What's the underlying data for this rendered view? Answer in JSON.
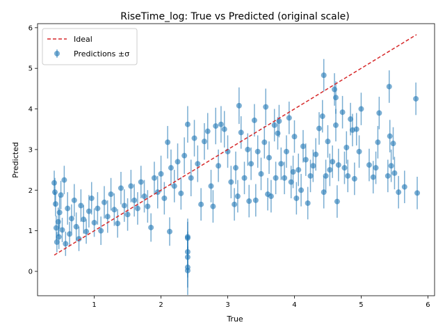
{
  "chart_data": {
    "type": "scatter",
    "title": "RiseTime_log: True vs Predicted (original scale)",
    "xlabel": "True",
    "ylabel": "Predicted",
    "xlim": [
      0.15,
      6.1
    ],
    "ylim": [
      -0.6,
      6.1
    ],
    "xticks": [
      1,
      2,
      3,
      4,
      5,
      6
    ],
    "yticks": [
      0,
      1,
      2,
      3,
      4,
      5,
      6
    ],
    "grid": false,
    "legend": {
      "placement": "top-left",
      "entries": [
        {
          "label": "Ideal",
          "style": "dashed-line",
          "color": "#d62728"
        },
        {
          "label": "Predictions ±σ",
          "style": "errorbar-marker",
          "color": "#1f77b4"
        }
      ]
    },
    "ideal_line": {
      "x": [
        0.4,
        5.83
      ],
      "y": [
        0.4,
        5.83
      ],
      "color": "#d62728"
    },
    "series": [
      {
        "name": "Predictions ±σ",
        "color": "#1f77b4",
        "alpha": 0.6,
        "points": [
          [
            0.4,
            2.18,
            0.3
          ],
          [
            0.41,
            1.95,
            0.35
          ],
          [
            0.42,
            1.66,
            0.3
          ],
          [
            0.43,
            1.07,
            0.3
          ],
          [
            0.44,
            0.72,
            0.25
          ],
          [
            0.46,
            1.22,
            0.35
          ],
          [
            0.47,
            0.85,
            0.3
          ],
          [
            0.48,
            1.45,
            0.4
          ],
          [
            0.5,
            1.88,
            0.35
          ],
          [
            0.52,
            1.02,
            0.3
          ],
          [
            0.55,
            2.25,
            0.35
          ],
          [
            0.57,
            0.68,
            0.3
          ],
          [
            0.6,
            1.55,
            0.4
          ],
          [
            0.63,
            0.92,
            0.3
          ],
          [
            0.66,
            1.3,
            0.35
          ],
          [
            0.7,
            1.75,
            0.4
          ],
          [
            0.73,
            1.1,
            0.35
          ],
          [
            0.77,
            0.8,
            0.3
          ],
          [
            0.8,
            1.62,
            0.4
          ],
          [
            0.84,
            1.28,
            0.35
          ],
          [
            0.88,
            0.98,
            0.3
          ],
          [
            0.92,
            1.48,
            0.4
          ],
          [
            0.96,
            1.8,
            0.4
          ],
          [
            1.0,
            1.2,
            0.35
          ],
          [
            1.05,
            1.55,
            0.4
          ],
          [
            1.1,
            1.0,
            0.35
          ],
          [
            1.15,
            1.7,
            0.4
          ],
          [
            1.2,
            1.35,
            0.4
          ],
          [
            1.25,
            1.9,
            0.4
          ],
          [
            1.3,
            1.52,
            0.4
          ],
          [
            1.35,
            1.18,
            0.35
          ],
          [
            1.4,
            2.05,
            0.4
          ],
          [
            1.45,
            1.62,
            0.4
          ],
          [
            1.5,
            1.4,
            0.4
          ],
          [
            1.55,
            2.1,
            0.4
          ],
          [
            1.6,
            1.75,
            0.4
          ],
          [
            1.65,
            1.55,
            0.4
          ],
          [
            1.7,
            2.2,
            0.4
          ],
          [
            1.75,
            1.85,
            0.4
          ],
          [
            1.8,
            1.6,
            0.4
          ],
          [
            1.85,
            1.08,
            0.35
          ],
          [
            1.9,
            2.3,
            0.4
          ],
          [
            1.95,
            1.95,
            0.4
          ],
          [
            2.0,
            2.4,
            0.45
          ],
          [
            2.05,
            1.8,
            0.4
          ],
          [
            2.1,
            3.18,
            0.4
          ],
          [
            2.13,
            0.98,
            0.35
          ],
          [
            2.15,
            2.55,
            0.45
          ],
          [
            2.2,
            2.1,
            0.4
          ],
          [
            2.25,
            2.7,
            0.45
          ],
          [
            2.3,
            1.92,
            0.4
          ],
          [
            2.35,
            2.85,
            0.45
          ],
          [
            2.4,
            3.62,
            0.45
          ],
          [
            2.4,
            0.85,
            0.45
          ],
          [
            2.4,
            0.82,
            0.4
          ],
          [
            2.4,
            0.48,
            0.5
          ],
          [
            2.4,
            0.35,
            0.5
          ],
          [
            2.4,
            0.1,
            0.5
          ],
          [
            2.4,
            0.02,
            0.6
          ],
          [
            2.45,
            2.3,
            0.45
          ],
          [
            2.5,
            3.28,
            0.45
          ],
          [
            2.55,
            2.65,
            0.45
          ],
          [
            2.6,
            1.65,
            0.4
          ],
          [
            2.65,
            3.2,
            0.45
          ],
          [
            2.7,
            3.45,
            0.45
          ],
          [
            2.75,
            2.1,
            0.4
          ],
          [
            2.78,
            1.6,
            0.4
          ],
          [
            2.82,
            3.58,
            0.45
          ],
          [
            2.86,
            2.6,
            0.4
          ],
          [
            2.9,
            3.62,
            0.45
          ],
          [
            2.95,
            3.5,
            0.45
          ],
          [
            3.0,
            2.95,
            0.4
          ],
          [
            3.05,
            2.2,
            0.4
          ],
          [
            3.1,
            1.65,
            0.4
          ],
          [
            3.12,
            2.55,
            0.4
          ],
          [
            3.15,
            1.85,
            0.4
          ],
          [
            3.17,
            4.08,
            0.45
          ],
          [
            3.2,
            3.42,
            0.4
          ],
          [
            3.25,
            2.3,
            0.4
          ],
          [
            3.3,
            3.0,
            0.4
          ],
          [
            3.32,
            1.73,
            0.4
          ],
          [
            3.35,
            2.65,
            0.4
          ],
          [
            3.4,
            3.72,
            0.4
          ],
          [
            3.42,
            1.75,
            0.4
          ],
          [
            3.45,
            2.95,
            0.4
          ],
          [
            3.5,
            2.4,
            0.4
          ],
          [
            3.55,
            3.18,
            0.4
          ],
          [
            3.57,
            4.05,
            0.45
          ],
          [
            3.6,
            1.9,
            0.4
          ],
          [
            3.62,
            2.8,
            0.4
          ],
          [
            3.65,
            1.85,
            0.4
          ],
          [
            3.7,
            3.6,
            0.4
          ],
          [
            3.72,
            2.3,
            0.4
          ],
          [
            3.75,
            3.4,
            0.4
          ],
          [
            3.77,
            3.7,
            0.4
          ],
          [
            3.8,
            2.65,
            0.4
          ],
          [
            3.85,
            2.3,
            0.4
          ],
          [
            3.88,
            2.95,
            0.4
          ],
          [
            3.92,
            3.78,
            0.4
          ],
          [
            3.95,
            2.2,
            0.4
          ],
          [
            3.98,
            2.45,
            0.4
          ],
          [
            4.0,
            3.32,
            0.4
          ],
          [
            4.03,
            1.8,
            0.4
          ],
          [
            4.06,
            2.5,
            0.4
          ],
          [
            4.1,
            2.0,
            0.4
          ],
          [
            4.13,
            3.08,
            0.4
          ],
          [
            4.17,
            2.75,
            0.4
          ],
          [
            4.2,
            1.68,
            0.4
          ],
          [
            4.24,
            2.35,
            0.4
          ],
          [
            4.28,
            2.6,
            0.4
          ],
          [
            4.32,
            2.88,
            0.4
          ],
          [
            4.37,
            3.52,
            0.4
          ],
          [
            4.42,
            3.82,
            0.4
          ],
          [
            4.44,
            1.95,
            0.4
          ],
          [
            4.44,
            4.83,
            0.4
          ],
          [
            4.47,
            2.35,
            0.4
          ],
          [
            4.5,
            3.2,
            0.4
          ],
          [
            4.53,
            2.5,
            0.4
          ],
          [
            4.57,
            2.7,
            0.4
          ],
          [
            4.6,
            4.48,
            0.4
          ],
          [
            4.62,
            4.28,
            0.4
          ],
          [
            4.62,
            3.6,
            0.4
          ],
          [
            4.64,
            1.72,
            0.4
          ],
          [
            4.66,
            2.62,
            0.4
          ],
          [
            4.72,
            3.92,
            0.4
          ],
          [
            4.75,
            2.55,
            0.4
          ],
          [
            4.78,
            3.05,
            0.4
          ],
          [
            4.8,
            2.35,
            0.4
          ],
          [
            4.84,
            3.75,
            0.4
          ],
          [
            4.87,
            3.48,
            0.4
          ],
          [
            4.9,
            2.28,
            0.4
          ],
          [
            4.93,
            3.5,
            0.4
          ],
          [
            4.97,
            2.95,
            0.4
          ],
          [
            5.0,
            4.0,
            0.4
          ],
          [
            5.12,
            2.62,
            0.4
          ],
          [
            5.18,
            2.32,
            0.4
          ],
          [
            5.22,
            2.55,
            0.4
          ],
          [
            5.25,
            3.18,
            0.4
          ],
          [
            5.27,
            3.9,
            0.4
          ],
          [
            5.4,
            2.35,
            0.4
          ],
          [
            5.42,
            4.55,
            0.4
          ],
          [
            5.43,
            3.33,
            0.4
          ],
          [
            5.45,
            2.6,
            0.4
          ],
          [
            5.48,
            3.15,
            0.4
          ],
          [
            5.5,
            2.42,
            0.4
          ],
          [
            5.56,
            1.95,
            0.4
          ],
          [
            5.65,
            2.08,
            0.4
          ],
          [
            5.82,
            4.25,
            0.4
          ],
          [
            5.84,
            1.93,
            0.4
          ]
        ]
      }
    ]
  }
}
